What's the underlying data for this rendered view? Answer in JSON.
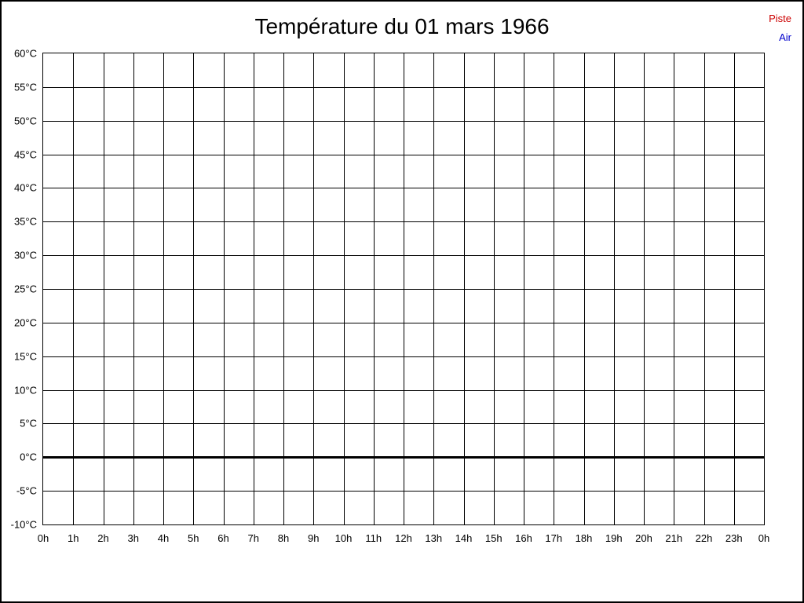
{
  "page": {
    "title": "Température du 01 mars 1966"
  },
  "legend": [
    {
      "label": "Piste",
      "color": "#cc0000"
    },
    {
      "label": "Air",
      "color": "#0000cc"
    }
  ],
  "chart_data": {
    "type": "line",
    "title": "Température du 01 mars 1966",
    "xlabel": "",
    "ylabel": "",
    "x_tick_labels": [
      "0h",
      "1h",
      "2h",
      "3h",
      "4h",
      "5h",
      "6h",
      "7h",
      "8h",
      "9h",
      "10h",
      "11h",
      "12h",
      "13h",
      "14h",
      "15h",
      "16h",
      "17h",
      "18h",
      "19h",
      "20h",
      "21h",
      "22h",
      "23h",
      "0h"
    ],
    "y_ticks": [
      60,
      55,
      50,
      45,
      40,
      35,
      30,
      25,
      20,
      15,
      10,
      5,
      0,
      -5,
      -10
    ],
    "y_tick_labels": [
      "60°C",
      "55°C",
      "50°C",
      "45°C",
      "40°C",
      "35°C",
      "30°C",
      "25°C",
      "20°C",
      "15°C",
      "10°C",
      "5°C",
      "0°C",
      "-5°C",
      "-10°C"
    ],
    "ylim": [
      -10,
      60
    ],
    "xlim_hours": [
      0,
      24
    ],
    "grid": true,
    "grid_color": "#000000",
    "zero_line": {
      "value": 0,
      "color": "#000000",
      "stroke_width": 3
    },
    "legend_position": "top-right",
    "series": [
      {
        "name": "Piste",
        "color": "#cc0000",
        "values": []
      },
      {
        "name": "Air",
        "color": "#0000cc",
        "values": []
      }
    ]
  }
}
